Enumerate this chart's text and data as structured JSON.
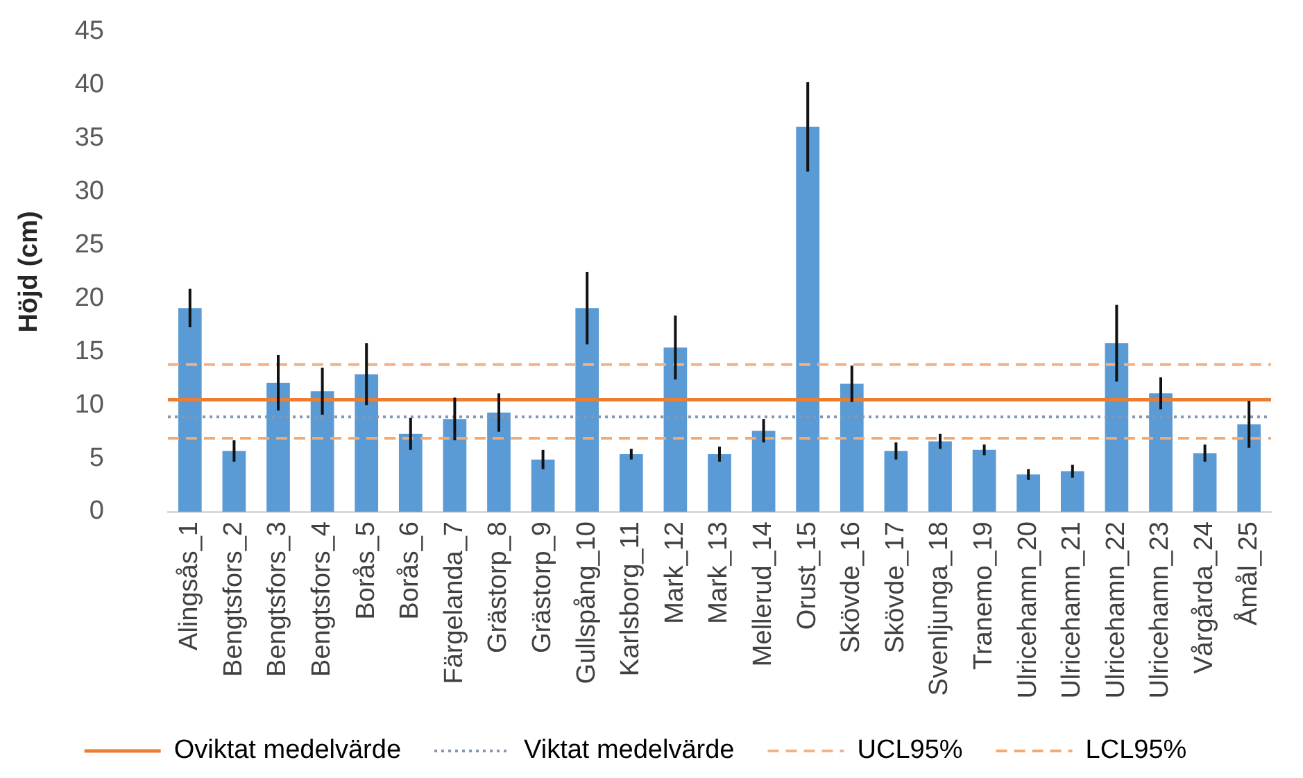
{
  "chart_data": {
    "type": "bar",
    "ylabel": "Höjd (cm)",
    "categories": [
      "Alingsås_1",
      "Bengtsfors_2",
      "Bengtsfors_3",
      "Bengtsfors_4",
      "Borås_5",
      "Borås_6",
      "Färgelanda_7",
      "Grästorp_8",
      "Grästorp_9",
      "Gullspång_10",
      "Karlsborg_11",
      "Mark_12",
      "Mark_13",
      "Mellerud_14",
      "Orust_15",
      "Skövde_16",
      "Skövde_17",
      "Svenljunga_18",
      "Tranemo_19",
      "Ulricehamn_20",
      "Ulricehamn_21",
      "Ulricehamn_22",
      "Ulricehamn_23",
      "Vårgårda_24",
      "Åmål_25"
    ],
    "values": [
      19.1,
      5.7,
      12.1,
      11.3,
      12.9,
      7.3,
      8.7,
      9.3,
      4.9,
      19.1,
      5.4,
      15.4,
      5.4,
      7.6,
      36.1,
      12.0,
      5.7,
      6.6,
      5.8,
      3.5,
      3.8,
      15.8,
      11.1,
      5.5,
      8.2
    ],
    "errors": [
      1.8,
      1.0,
      2.6,
      2.2,
      2.9,
      1.5,
      2.0,
      1.8,
      0.9,
      3.4,
      0.5,
      3.0,
      0.7,
      1.1,
      4.2,
      1.7,
      0.8,
      0.7,
      0.5,
      0.5,
      0.6,
      3.6,
      1.5,
      0.8,
      2.2
    ],
    "color": "#5b9bd5",
    "ylim": [
      0,
      45
    ],
    "yticks": [
      0,
      5,
      10,
      15,
      20,
      25,
      30,
      35,
      40,
      45
    ],
    "ref_lines": [
      {
        "axis": "y",
        "value": 10.5,
        "label": "Oviktat medelvärde",
        "color": "#ed7d31",
        "line_style": "solid"
      },
      {
        "axis": "y",
        "value": 8.9,
        "label": "Viktat medelvärde",
        "color": "#8497b0",
        "line_style": "dotted"
      },
      {
        "axis": "y",
        "value": 13.8,
        "label": "UCL95%",
        "color": "#f4b183",
        "line_style": "dashed"
      },
      {
        "axis": "y",
        "value": 6.9,
        "label": "LCL95%",
        "color": "#f4a96e",
        "line_style": "dashed"
      }
    ],
    "legend": "bottom"
  }
}
